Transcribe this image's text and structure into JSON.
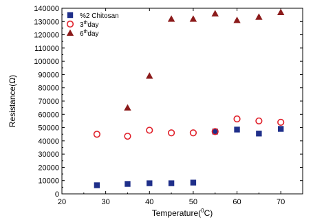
{
  "chart_data": {
    "type": "scatter",
    "xlabel_main": "Temperature(",
    "xlabel_sup": "0",
    "xlabel_tail": "C)",
    "ylabel": "Resistance(Ω)",
    "xlim": [
      20,
      75
    ],
    "ylim": [
      0,
      140000
    ],
    "x_ticks": [
      20,
      30,
      40,
      50,
      60,
      70
    ],
    "y_ticks": [
      0,
      10000,
      20000,
      30000,
      40000,
      50000,
      60000,
      70000,
      80000,
      90000,
      100000,
      110000,
      120000,
      130000,
      140000
    ],
    "legend_position": "top-left",
    "series": [
      {
        "name_main": "%2 Chitosan",
        "name_sup": "",
        "name_tail": "",
        "marker": "square-filled",
        "color": "#1f2f8a",
        "x": [
          28,
          35,
          40,
          45,
          50,
          55,
          60,
          65,
          70
        ],
        "y": [
          6500,
          7500,
          8000,
          8000,
          8500,
          47000,
          48500,
          45500,
          49000
        ]
      },
      {
        "name_main": "3",
        "name_sup": "th",
        "name_tail": "day",
        "marker": "circle-open",
        "color": "#e0202a",
        "x": [
          28,
          35,
          40,
          45,
          50,
          55,
          60,
          65,
          70
        ],
        "y": [
          45000,
          43500,
          48000,
          46000,
          46000,
          47000,
          56500,
          55000,
          54000
        ]
      },
      {
        "name_main": "6",
        "name_sup": "th",
        "name_tail": "day",
        "marker": "triangle-filled",
        "color": "#8b1a1a",
        "x": [
          35,
          40,
          45,
          50,
          55,
          60,
          65,
          70
        ],
        "y": [
          65000,
          89000,
          132000,
          132000,
          136000,
          131000,
          133500,
          137000
        ]
      }
    ]
  }
}
